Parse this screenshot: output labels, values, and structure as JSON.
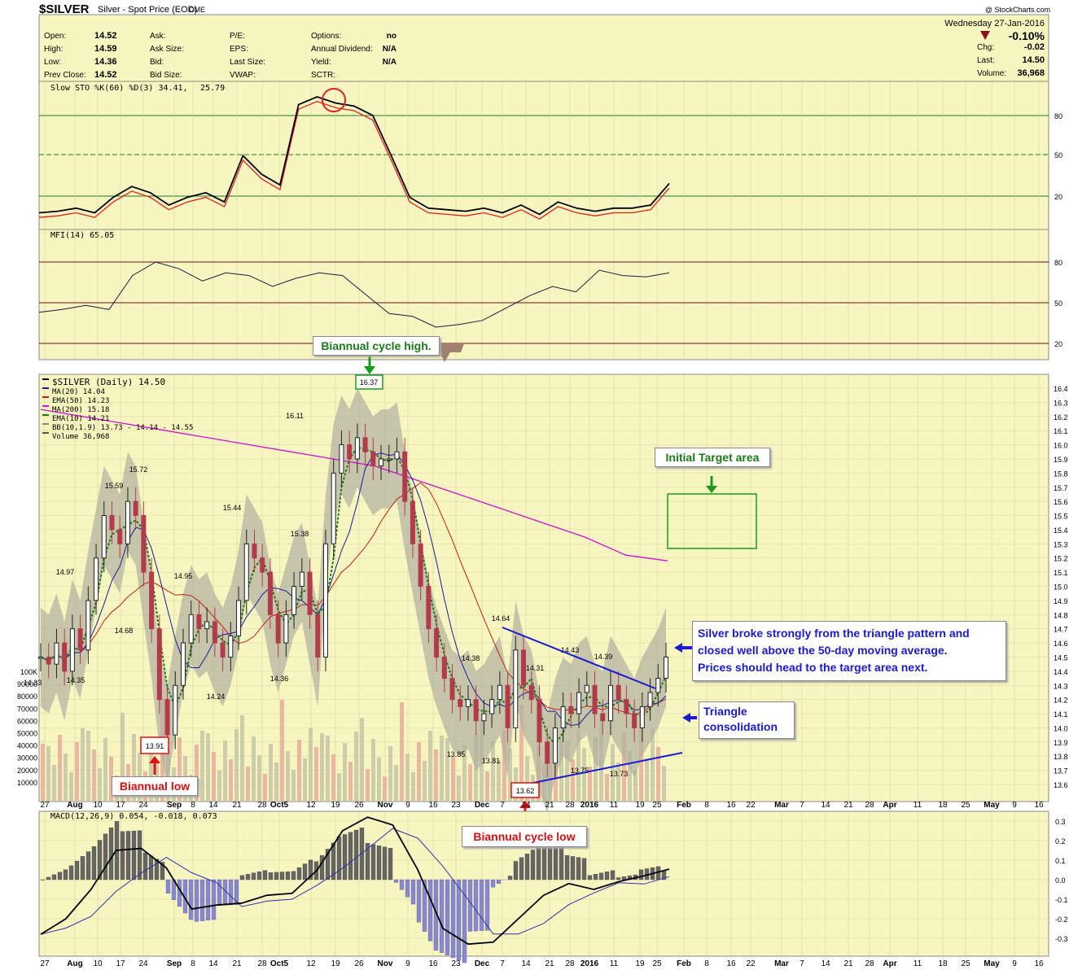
{
  "header": {
    "symbol": "$SILVER",
    "name": "Silver - Spot Price (EOD)",
    "exchange": "CME",
    "date": "Wednesday  27-Jan-2016",
    "watermark": "@ StockCharts.com",
    "change_pct": "-0.10%",
    "stats_left": [
      {
        "label": "Open:",
        "value": "14.52"
      },
      {
        "label": "High:",
        "value": "14.59"
      },
      {
        "label": "Low:",
        "value": "14.36"
      },
      {
        "label": "Prev Close:",
        "value": "14.52"
      }
    ],
    "stats_mid": [
      "Ask:",
      "Ask Size:",
      "Bid:",
      "Bid Size:"
    ],
    "stats_mid2": [
      "P/E:",
      "EPS:",
      "Last Size:",
      "VWAP:"
    ],
    "stats_mid3": [
      {
        "label": "Options:",
        "value": "no"
      },
      {
        "label": "Annual Dividend:",
        "value": "N/A"
      },
      {
        "label": "Yield:",
        "value": "N/A"
      },
      {
        "label": "SCTR:",
        "value": ""
      }
    ],
    "stats_right": [
      {
        "label": "Chg:",
        "value": "-0.02"
      },
      {
        "label": "Last:",
        "value": "14.50"
      },
      {
        "label": "Volume:",
        "value": "36,968"
      }
    ]
  },
  "sto_panel": {
    "label": "Slow STO %K(60) %D(3) 34.41,",
    "value2": "25.79",
    "levels": [
      "80",
      "50",
      "20"
    ]
  },
  "mfi_panel": {
    "label": "MFI(14) 65.05",
    "levels": [
      "80",
      "50",
      "20"
    ]
  },
  "price_legend": [
    {
      "text": "$SILVER (Daily) 14.50",
      "color": "#000"
    },
    {
      "text": "MA(20) 14.04",
      "color": "#1a1aa0"
    },
    {
      "text": "EMA(50) 14.23",
      "color": "#c0201a"
    },
    {
      "text": "MA(200) 15.18",
      "color": "#d010d0"
    },
    {
      "text": "EMA(10) 14.21",
      "color": "#1a7a1a"
    },
    {
      "text": "BB(10,1.9) 13.73 - 14.14 - 14.55",
      "color": "#888"
    },
    {
      "text": "Volume 36,968",
      "color": "#555"
    }
  ],
  "macd_panel": {
    "label": "MACD(12,26,9) 0.054, -0.018, 0.073"
  },
  "annotations": {
    "biannual_high": "Biannual cycle high.",
    "high_value": "16.37",
    "initial_target": "Initial Target area",
    "biannual_low": "Biannual low",
    "low_value": "13.91",
    "cycle_low": "Biannual cycle low",
    "cycle_low_value": "13.62",
    "breakout_note": [
      "Silver broke strongly from the triangle pattern and",
      "closed well above the 50-day moving average.",
      "Prices should head to the target area next."
    ],
    "triangle_note": [
      "Triangle",
      "consolidation"
    ]
  },
  "price_labels": [
    {
      "v": "14.33"
    },
    {
      "v": "14.35"
    },
    {
      "v": "14.97"
    },
    {
      "v": "15.59"
    },
    {
      "v": "15.72"
    },
    {
      "v": "14.68"
    },
    {
      "v": "14.95"
    },
    {
      "v": "15.44"
    },
    {
      "v": "14.24"
    },
    {
      "v": "16.11"
    },
    {
      "v": "15.38"
    },
    {
      "v": "14.36"
    },
    {
      "v": "14.64"
    },
    {
      "v": "14.38"
    },
    {
      "v": "13.85"
    },
    {
      "v": "13.81"
    },
    {
      "v": "14.31"
    },
    {
      "v": "14.43"
    },
    {
      "v": "14.39"
    },
    {
      "v": "13.75"
    },
    {
      "v": "13.73"
    }
  ],
  "x_axis": [
    "27",
    "Aug",
    "10",
    "17",
    "24",
    "Sep",
    "8",
    "14",
    "21",
    "28",
    "Oct5",
    "12",
    "19",
    "26",
    "Nov",
    "9",
    "16",
    "23",
    "Dec",
    "7",
    "14",
    "21",
    "28",
    "2016",
    "11",
    "19",
    "25",
    "Feb",
    "8",
    "16",
    "22",
    "Mar",
    "7",
    "14",
    "21",
    "28",
    "Apr",
    "11",
    "18",
    "25",
    "May",
    "9",
    "16"
  ],
  "chart_data": {
    "type": "line",
    "title": "$SILVER Silver - Spot Price (EOD) CME",
    "price_axis": {
      "min": 13.6,
      "max": 16.4,
      "ticks": [
        "13.6",
        "13.7",
        "13.8",
        "13.9",
        "14.0",
        "14.1",
        "14.2",
        "14.3",
        "14.4",
        "14.5",
        "14.6",
        "14.7",
        "14.8",
        "14.9",
        "15.0",
        "15.1",
        "15.2",
        "15.3",
        "15.4",
        "15.5",
        "15.6",
        "15.7",
        "15.8",
        "15.9",
        "16.0",
        "16.1",
        "16.2",
        "16.3",
        "16.4"
      ]
    },
    "volume_axis": [
      "100K",
      "90000",
      "80000",
      "70000",
      "60000",
      "50000",
      "40000",
      "30000",
      "20000",
      "10000"
    ],
    "macd_axis": [
      "0.3",
      "0.2",
      "0.1",
      "0.0",
      "-0.1",
      "-0.2",
      "-0.3"
    ],
    "series": [
      {
        "name": "$SILVER (Daily)",
        "values": [
          14.5,
          14.45,
          14.6,
          14.4,
          14.7,
          14.55,
          14.9,
          15.2,
          15.5,
          15.4,
          15.3,
          15.6,
          15.5,
          15.1,
          14.7,
          14.2,
          13.95,
          14.3,
          14.6,
          14.8,
          14.7,
          14.75,
          14.6,
          14.5,
          14.65,
          14.9,
          15.3,
          15.2,
          15.1,
          14.8,
          14.6,
          14.8,
          15.0,
          15.1,
          14.8,
          14.5,
          15.3,
          15.8,
          16.0,
          15.9,
          16.05,
          15.95,
          15.85,
          15.9,
          15.9,
          15.95,
          15.6,
          15.3,
          15.0,
          14.7,
          14.5,
          14.35,
          14.2,
          14.15,
          14.2,
          14.05,
          14.1,
          14.2,
          14.3,
          14.0,
          14.55,
          14.3,
          14.2,
          13.9,
          13.75,
          14.0,
          14.15,
          14.1,
          14.25,
          14.3,
          14.1,
          14.05,
          14.3,
          14.2,
          14.1,
          14.0,
          14.15,
          14.25,
          14.35,
          14.5
        ]
      },
      {
        "name": "MA(200)",
        "values": [
          16.25,
          16.2,
          16.15,
          16.1,
          16.05,
          16.0,
          15.95,
          15.9,
          15.85,
          15.75,
          15.65,
          15.55,
          15.45,
          15.35,
          15.22,
          15.18
        ]
      },
      {
        "name": "Slow STO %K",
        "values": [
          15,
          16,
          18,
          15,
          25,
          32,
          28,
          20,
          25,
          28,
          22,
          52,
          40,
          33,
          85,
          90,
          86,
          84,
          78,
          52,
          25,
          18,
          17,
          16,
          18,
          15,
          20,
          14,
          22,
          18,
          16,
          18,
          18,
          20,
          34
        ]
      },
      {
        "name": "MFI",
        "values": [
          43,
          45,
          48,
          45,
          70,
          80,
          75,
          66,
          72,
          70,
          62,
          68,
          72,
          70,
          56,
          42,
          40,
          32,
          34,
          37,
          46,
          55,
          62,
          58,
          74,
          70,
          69,
          72
        ]
      },
      {
        "name": "MACD",
        "values": [
          -0.28,
          -0.2,
          -0.05,
          0.15,
          0.16,
          0.06,
          -0.15,
          -0.13,
          -0.12,
          -0.08,
          -0.07,
          0.05,
          0.25,
          0.32,
          0.28,
          0.05,
          -0.25,
          -0.33,
          -0.32,
          -0.2,
          -0.08,
          -0.02,
          -0.05,
          -0.01,
          0.02,
          0.054
        ]
      }
    ]
  },
  "colors": {
    "panel_bg": "#f8f6c0",
    "grid": "#d8d6a0",
    "green_line": "#1b7a1b",
    "maroon_line": "#6a1010",
    "up": "#222",
    "down": "#b33a4a"
  }
}
